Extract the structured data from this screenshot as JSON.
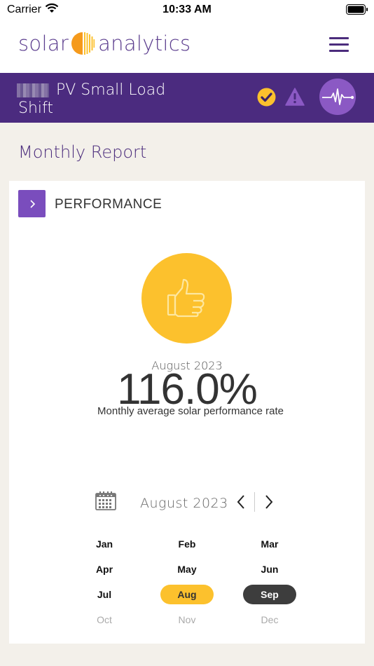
{
  "status_bar": {
    "carrier": "Carrier",
    "time": "10:33 AM"
  },
  "header": {
    "logo_left": "solar",
    "logo_right": "analytics"
  },
  "site": {
    "name_line1": "PV Small Load",
    "name_line2": "Shift"
  },
  "page": {
    "title": "Monthly Report"
  },
  "performance": {
    "section_title": "PERFORMANCE",
    "month": "August 2023",
    "value": "116.0%",
    "caption": "Monthly average solar performance rate"
  },
  "picker": {
    "label": "August 2023",
    "months": [
      [
        "Jan",
        "Feb",
        "Mar"
      ],
      [
        "Apr",
        "May",
        "Jun"
      ],
      [
        "Jul",
        "Aug",
        "Sep"
      ],
      [
        "Oct",
        "Nov",
        "Dec"
      ]
    ]
  },
  "colors": {
    "brand_purple": "#4b2b7f",
    "accent_yellow": "#fcc12d",
    "button_purple": "#7a4dbd"
  }
}
